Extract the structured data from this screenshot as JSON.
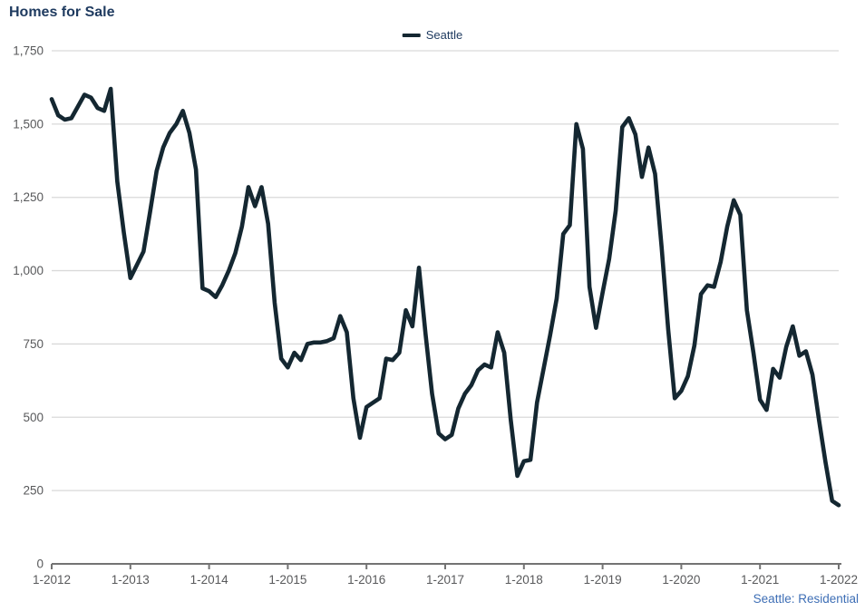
{
  "title": "Homes for Sale",
  "legend": {
    "label": "Seattle"
  },
  "footer": "Seattle: Residential",
  "colors": {
    "title": "#1e3a5f",
    "line": "#142731",
    "grid": "#d9d9d9",
    "axis": "#737373",
    "tick_label": "#58595b",
    "footer": "#3d6eb5"
  },
  "chart_data": {
    "type": "line",
    "title": "Homes for Sale",
    "x_tick_labels": [
      "1-2012",
      "1-2013",
      "1-2014",
      "1-2015",
      "1-2016",
      "1-2017",
      "1-2018",
      "1-2019",
      "1-2020",
      "1-2021",
      "1-2022"
    ],
    "x_tick_interval_months": 12,
    "x_unit": "month",
    "y_ticks": [
      0,
      250,
      500,
      750,
      1000,
      1250,
      1500,
      1750
    ],
    "ylim": [
      0,
      1750
    ],
    "grid": "horizontal",
    "legend_position": "top-center",
    "footnote": "Seattle: Residential",
    "series": [
      {
        "name": "Seattle",
        "start": "1-2012",
        "end": "1-2022",
        "values": [
          1585,
          1530,
          1515,
          1520,
          1560,
          1600,
          1590,
          1555,
          1545,
          1620,
          1305,
          1130,
          975,
          1020,
          1065,
          1200,
          1340,
          1420,
          1470,
          1500,
          1545,
          1470,
          1345,
          940,
          930,
          910,
          950,
          1000,
          1060,
          1150,
          1285,
          1220,
          1285,
          1160,
          890,
          700,
          670,
          720,
          695,
          750,
          755,
          755,
          760,
          770,
          845,
          790,
          565,
          430,
          535,
          550,
          565,
          700,
          695,
          720,
          865,
          810,
          1010,
          785,
          580,
          445,
          425,
          440,
          530,
          580,
          610,
          660,
          680,
          670,
          790,
          720,
          490,
          300,
          350,
          355,
          550,
          665,
          780,
          905,
          1125,
          1155,
          1500,
          1415,
          945,
          805,
          925,
          1040,
          1205,
          1490,
          1520,
          1465,
          1320,
          1420,
          1330,
          1080,
          800,
          565,
          590,
          640,
          745,
          920,
          950,
          945,
          1030,
          1150,
          1240,
          1190,
          865,
          720,
          560,
          525,
          665,
          635,
          740,
          810,
          710,
          725,
          645,
          490,
          345,
          215,
          200
        ]
      }
    ]
  }
}
